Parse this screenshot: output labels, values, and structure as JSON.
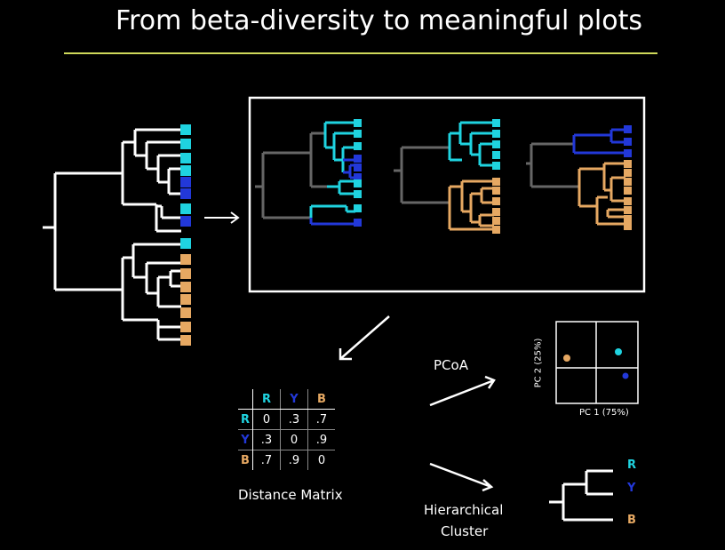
{
  "slide": {
    "title": "From beta-diversity to meaningful plots"
  },
  "colors": {
    "cyan": "#1fd3e0",
    "blue": "#2238d9",
    "orange": "#e6a862",
    "gray": "#666666",
    "rule": "#cfd95a"
  },
  "matrix": {
    "caption": "Distance Matrix",
    "header": [
      "R",
      "Y",
      "B"
    ],
    "rows": [
      {
        "label": "R",
        "values": [
          "0",
          ".3",
          ".7"
        ]
      },
      {
        "label": "Y",
        "values": [
          ".3",
          "0",
          ".9"
        ]
      },
      {
        "label": "B",
        "values": [
          ".7",
          ".9",
          "0"
        ]
      }
    ]
  },
  "pcoa": {
    "label": "PCoA",
    "x_axis": "PC 1 (75%)",
    "y_axis": "PC 2 (25%)"
  },
  "cluster": {
    "label_line1": "Hierarchical",
    "label_line2": "Cluster",
    "leaves": [
      "R",
      "Y",
      "B"
    ]
  }
}
